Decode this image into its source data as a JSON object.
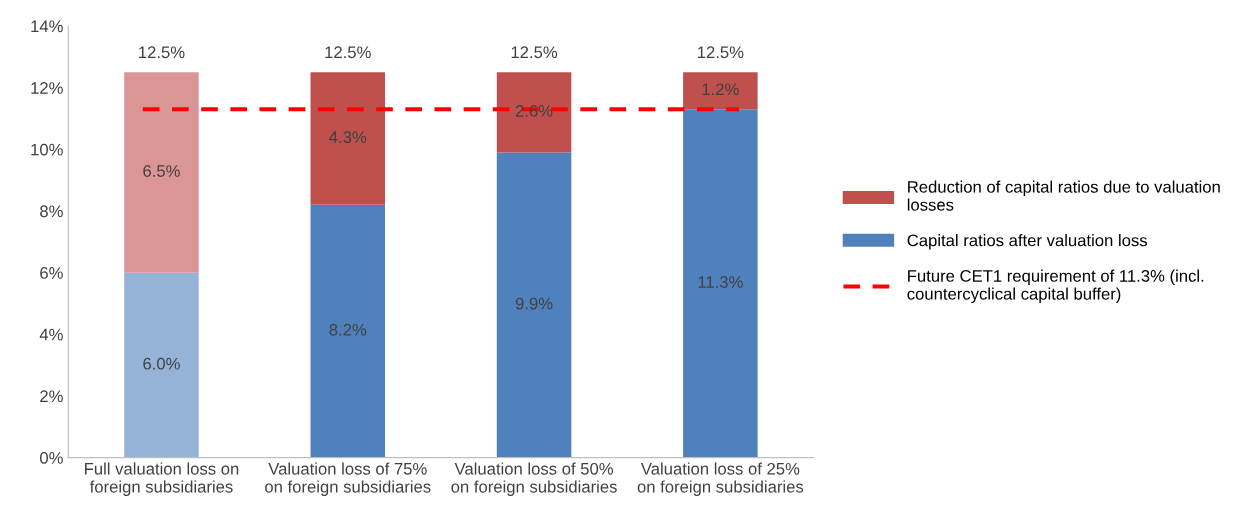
{
  "chart_data": {
    "type": "bar",
    "stacked": true,
    "categories": [
      "Full valuation loss on\nforeign subsidiaries",
      "Valuation loss of 75%\non foreign subsidiaries",
      "Valuation loss of 50%\non foreign subsidiaries",
      "Valuation loss of 25%\non foreign subsidiaries"
    ],
    "series": [
      {
        "name": "Capital ratios after valuation loss",
        "color": "#4f81bd",
        "colors": [
          "#95b3d7",
          "#4f81bd",
          "#4f81bd",
          "#4f81bd"
        ],
        "values": [
          6.0,
          8.2,
          9.9,
          11.3
        ],
        "value_labels": [
          "6.0%",
          "8.2%",
          "9.9%",
          "11.3%"
        ]
      },
      {
        "name": "Reduction of capital ratios due to valuation\nlosses",
        "color": "#c0504d",
        "colors": [
          "#d99694",
          "#c0504d",
          "#c0504d",
          "#c0504d"
        ],
        "values": [
          6.5,
          4.3,
          2.6,
          1.2
        ],
        "value_labels": [
          "6.5%",
          "4.3%",
          "2.6%",
          "1.2%"
        ]
      }
    ],
    "totals": [
      "12.5%",
      "12.5%",
      "12.5%",
      "12.5%"
    ],
    "ylim": [
      0,
      14
    ],
    "yticks": [
      {
        "value": 0,
        "label": "0%"
      },
      {
        "value": 2,
        "label": "2%"
      },
      {
        "value": 4,
        "label": "4%"
      },
      {
        "value": 6,
        "label": "6%"
      },
      {
        "value": 8,
        "label": "8%"
      },
      {
        "value": 10,
        "label": "10%"
      },
      {
        "value": 12,
        "label": "12%"
      },
      {
        "value": 14,
        "label": "14%"
      }
    ],
    "ref_lines": [
      {
        "axis": "y",
        "value": 11.3,
        "label": "Future CET1 requirement of 11.3% (incl.\ncountercyclical capital buffer)",
        "color": "#ff0000",
        "line_style": "dashed"
      }
    ],
    "legend": "right",
    "grid": false
  }
}
